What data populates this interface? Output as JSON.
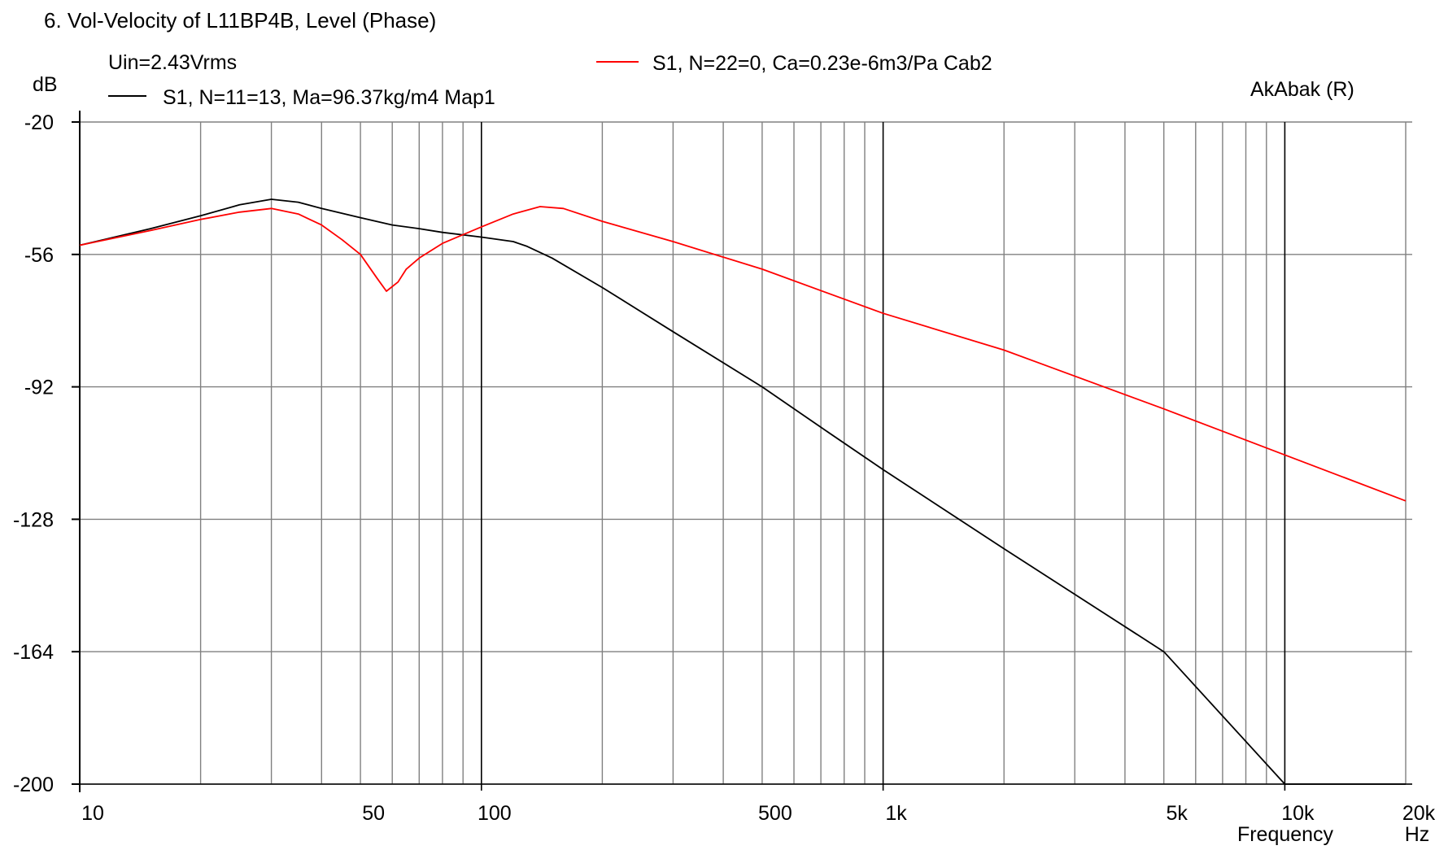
{
  "chart_data": {
    "type": "line",
    "title": "6. Vol-Velocity of L11BP4B, Level (Phase)",
    "subtitle": "Uin=2.43Vrms",
    "watermark": "AkAbak (R)",
    "ylabel": "dB",
    "xlabel": "Frequency",
    "xunit": "Hz",
    "xscale": "log",
    "xlim": [
      10,
      20000
    ],
    "ylim": [
      -200,
      -20
    ],
    "grid": true,
    "legend_placement": "top",
    "x_tick_values": [
      10,
      50,
      100,
      500,
      1000,
      5000,
      10000,
      20000
    ],
    "x_tick_labels": [
      "10",
      "50",
      "100",
      "500",
      "1k",
      "5k",
      "10k",
      "20k"
    ],
    "y_tick_values": [
      -20,
      -56,
      -92,
      -128,
      -164,
      -200
    ],
    "y_tick_labels": [
      "-20",
      "-56",
      "-92",
      "-128",
      "-164",
      "-200"
    ],
    "major_grid_x": [
      10,
      100,
      1000,
      10000
    ],
    "minor_grid_x": [
      20,
      30,
      40,
      50,
      60,
      70,
      80,
      90,
      200,
      300,
      400,
      500,
      600,
      700,
      800,
      900,
      2000,
      3000,
      4000,
      5000,
      6000,
      7000,
      8000,
      9000,
      20000
    ],
    "series": [
      {
        "name": "S1, N=11=13, Ma=96.37kg/m4 Map1",
        "color": "#000000",
        "points": [
          [
            10,
            -53.5
          ],
          [
            12,
            -51.5
          ],
          [
            15,
            -49.0
          ],
          [
            20,
            -45.5
          ],
          [
            25,
            -42.5
          ],
          [
            30,
            -41.0
          ],
          [
            35,
            -41.8
          ],
          [
            40,
            -43.5
          ],
          [
            50,
            -46.0
          ],
          [
            60,
            -48.0
          ],
          [
            70,
            -49.0
          ],
          [
            80,
            -50.0
          ],
          [
            100,
            -51.3
          ],
          [
            120,
            -52.5
          ],
          [
            130,
            -53.8
          ],
          [
            150,
            -57.0
          ],
          [
            200,
            -65.0
          ],
          [
            300,
            -77.0
          ],
          [
            500,
            -92.0
          ],
          [
            700,
            -103.0
          ],
          [
            1000,
            -114.5
          ],
          [
            2000,
            -136.0
          ],
          [
            5000,
            -164.0
          ],
          [
            10000,
            -200.0
          ],
          [
            20000,
            -200.0
          ]
        ]
      },
      {
        "name": "S1, N=22=0, Ca=0.23e-6m3/Pa Cab2",
        "color": "#ff0000",
        "points": [
          [
            10,
            -53.5
          ],
          [
            15,
            -49.5
          ],
          [
            20,
            -46.5
          ],
          [
            25,
            -44.5
          ],
          [
            30,
            -43.5
          ],
          [
            35,
            -45.0
          ],
          [
            40,
            -48.0
          ],
          [
            45,
            -52.0
          ],
          [
            50,
            -56.0
          ],
          [
            55,
            -62.5
          ],
          [
            58,
            -66.0
          ],
          [
            62,
            -63.5
          ],
          [
            65,
            -60.0
          ],
          [
            70,
            -57.0
          ],
          [
            80,
            -53.0
          ],
          [
            100,
            -48.5
          ],
          [
            120,
            -45.0
          ],
          [
            140,
            -43.0
          ],
          [
            160,
            -43.5
          ],
          [
            200,
            -47.0
          ],
          [
            300,
            -52.5
          ],
          [
            500,
            -60.0
          ],
          [
            1000,
            -72.0
          ],
          [
            2000,
            -82.0
          ],
          [
            5000,
            -98.0
          ],
          [
            10000,
            -110.5
          ],
          [
            20000,
            -123.0
          ]
        ]
      }
    ]
  }
}
